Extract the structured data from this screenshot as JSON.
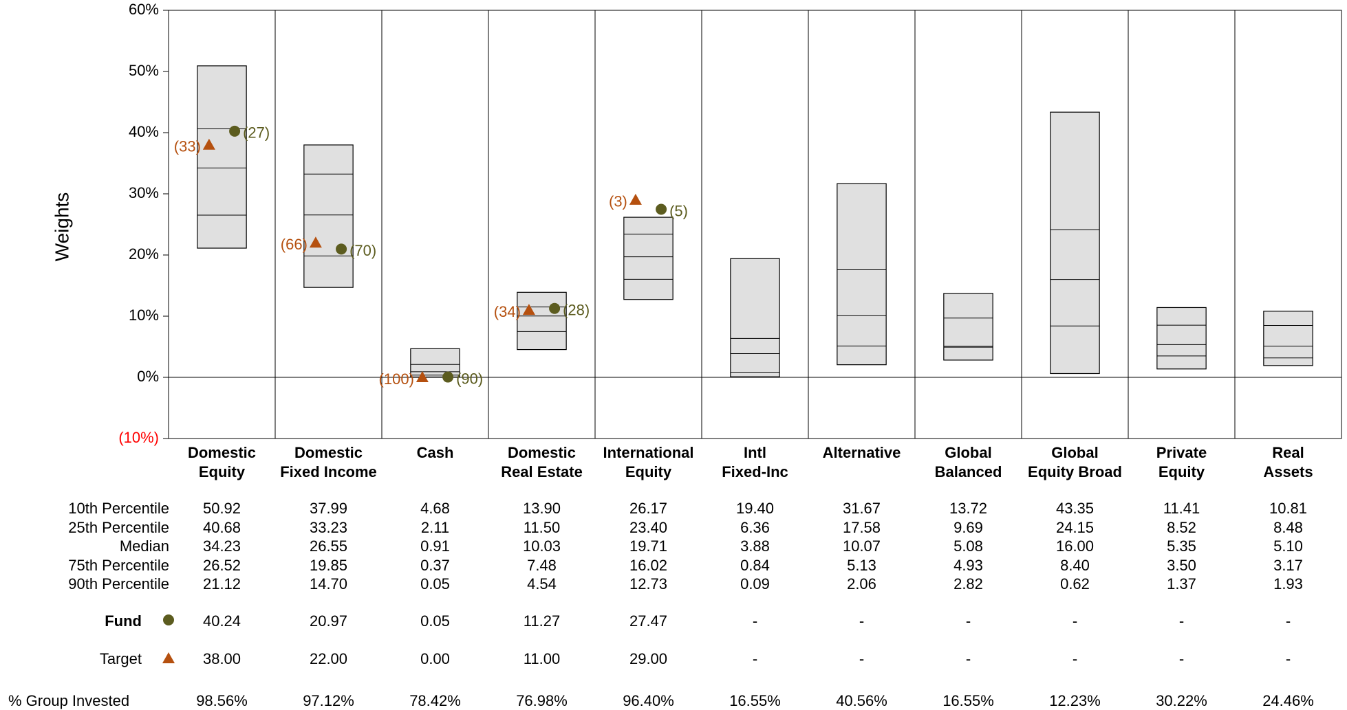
{
  "chart_data": {
    "type": "percentile_box",
    "ylabel": "Weights",
    "ylim": [
      -10,
      60
    ],
    "yticks": [
      {
        "value": -10,
        "label": "(10%)"
      },
      {
        "value": 0,
        "label": "0%"
      },
      {
        "value": 10,
        "label": "10%"
      },
      {
        "value": 20,
        "label": "20%"
      },
      {
        "value": 30,
        "label": "30%"
      },
      {
        "value": 40,
        "label": "40%"
      },
      {
        "value": 50,
        "label": "50%"
      },
      {
        "value": 60,
        "label": "60%"
      }
    ],
    "negative_tick_color": "#ff0000",
    "box_color": "#e0e0e0",
    "categories": [
      [
        "Domestic",
        "Equity"
      ],
      [
        "Domestic",
        "Fixed Income"
      ],
      [
        "Cash"
      ],
      [
        "Domestic",
        "Real Estate"
      ],
      [
        "International",
        "Equity"
      ],
      [
        "Intl",
        "Fixed-Inc"
      ],
      [
        "Alternative"
      ],
      [
        "Global",
        "Balanced"
      ],
      [
        "Global",
        "Equity Broad"
      ],
      [
        "Private",
        "Equity"
      ],
      [
        "Real",
        "Assets"
      ]
    ],
    "series": [
      {
        "name": "10th Percentile",
        "values": [
          50.92,
          37.99,
          4.68,
          13.9,
          26.17,
          19.4,
          31.67,
          13.72,
          43.35,
          11.41,
          10.81
        ],
        "value_labels": [
          "50.92",
          "37.99",
          "4.68",
          "13.90",
          "26.17",
          "19.40",
          "31.67",
          "13.72",
          "43.35",
          "11.41",
          "10.81"
        ]
      },
      {
        "name": "25th Percentile",
        "values": [
          40.68,
          33.23,
          2.11,
          11.5,
          23.4,
          6.36,
          17.58,
          9.69,
          24.15,
          8.52,
          8.48
        ],
        "value_labels": [
          "40.68",
          "33.23",
          "2.11",
          "11.50",
          "23.40",
          "6.36",
          "17.58",
          "9.69",
          "24.15",
          "8.52",
          "8.48"
        ]
      },
      {
        "name": "Median",
        "values": [
          34.23,
          26.55,
          0.91,
          10.03,
          19.71,
          3.88,
          10.07,
          5.08,
          16.0,
          5.35,
          5.1
        ],
        "value_labels": [
          "34.23",
          "26.55",
          "0.91",
          "10.03",
          "19.71",
          "3.88",
          "10.07",
          "5.08",
          "16.00",
          "5.35",
          "5.10"
        ]
      },
      {
        "name": "75th Percentile",
        "values": [
          26.52,
          19.85,
          0.37,
          7.48,
          16.02,
          0.84,
          5.13,
          4.93,
          8.4,
          3.5,
          3.17
        ],
        "value_labels": [
          "26.52",
          "19.85",
          "0.37",
          "7.48",
          "16.02",
          "0.84",
          "5.13",
          "4.93",
          "8.40",
          "3.50",
          "3.17"
        ]
      },
      {
        "name": "90th Percentile",
        "values": [
          21.12,
          14.7,
          0.05,
          4.54,
          12.73,
          0.09,
          2.06,
          2.82,
          0.62,
          1.37,
          1.93
        ],
        "value_labels": [
          "21.12",
          "14.70",
          "0.05",
          "4.54",
          "12.73",
          "0.09",
          "2.06",
          "2.82",
          "0.62",
          "1.37",
          "1.93"
        ]
      }
    ],
    "fund": {
      "name": "Fund",
      "color": "#5c5c1f",
      "values": [
        40.24,
        20.97,
        0.05,
        11.27,
        27.47,
        null,
        null,
        null,
        null,
        null,
        null
      ],
      "value_labels": [
        "40.24",
        "20.97",
        "0.05",
        "11.27",
        "27.47",
        "-",
        "-",
        "-",
        "-",
        "-",
        "-"
      ],
      "ranks": [
        27,
        70,
        90,
        28,
        5,
        null,
        null,
        null,
        null,
        null,
        null
      ],
      "rank_labels": [
        "(27)",
        "(70)",
        "(90)",
        "(28)",
        "(5)",
        null,
        null,
        null,
        null,
        null,
        null
      ]
    },
    "target": {
      "name": "Target",
      "color": "#b5500f",
      "values": [
        38.0,
        22.0,
        0.0,
        11.0,
        29.0,
        null,
        null,
        null,
        null,
        null,
        null
      ],
      "value_labels": [
        "38.00",
        "22.00",
        "0.00",
        "11.00",
        "29.00",
        "-",
        "-",
        "-",
        "-",
        "-",
        "-"
      ],
      "ranks": [
        33,
        66,
        100,
        34,
        3,
        null,
        null,
        null,
        null,
        null,
        null
      ],
      "rank_labels": [
        "(33)",
        "(66)",
        "(100)",
        "(34)",
        "(3)",
        null,
        null,
        null,
        null,
        null,
        null
      ]
    },
    "group_invested": {
      "name": "% Group Invested",
      "values": [
        98.56,
        97.12,
        78.42,
        76.98,
        96.4,
        16.55,
        40.56,
        16.55,
        12.23,
        30.22,
        24.46
      ],
      "value_labels": [
        "98.56%",
        "97.12%",
        "78.42%",
        "76.98%",
        "96.40%",
        "16.55%",
        "40.56%",
        "16.55%",
        "12.23%",
        "30.22%",
        "24.46%"
      ]
    }
  }
}
